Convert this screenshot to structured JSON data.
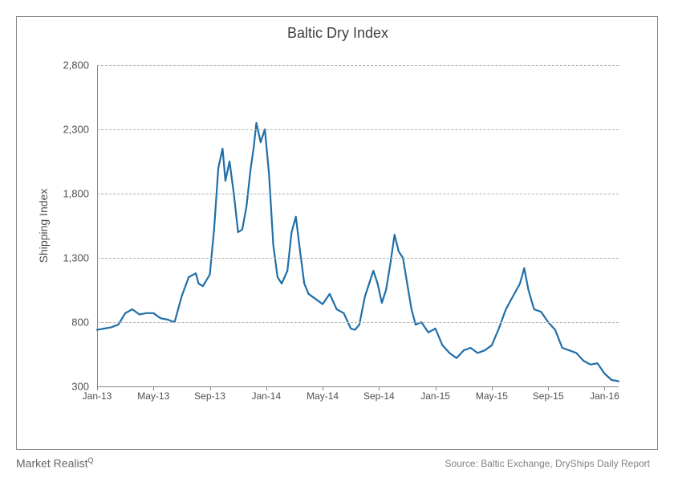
{
  "chart": {
    "type": "line",
    "title": "Baltic Dry Index",
    "title_fontsize": 18,
    "title_color": "#404040",
    "y_axis_title": "Shipping Index",
    "y_axis_title_fontsize": 14,
    "background_color": "#ffffff",
    "border_color": "#888888",
    "grid_color": "#b0b0b0",
    "grid_style": "dashed",
    "line_color": "#1f6fa8",
    "line_width": 2.2,
    "ylim": [
      300,
      2800
    ],
    "ytick_step": 500,
    "yticks": [
      300,
      800,
      1300,
      1800,
      2300,
      2800
    ],
    "ytick_labels": [
      "300",
      "800",
      "1,300",
      "1,800",
      "2,300",
      "2,800"
    ],
    "xlim": [
      0,
      37
    ],
    "xtick_positions": [
      0,
      4,
      8,
      12,
      16,
      20,
      24,
      28,
      32,
      36
    ],
    "xtick_labels": [
      "Jan-13",
      "May-13",
      "Sep-13",
      "Jan-14",
      "May-14",
      "Sep-14",
      "Jan-15",
      "May-15",
      "Sep-15",
      "Jan-16"
    ],
    "tick_label_fontsize": 13,
    "tick_label_color": "#505050",
    "series": [
      {
        "x": 0.0,
        "y": 740
      },
      {
        "x": 0.5,
        "y": 750
      },
      {
        "x": 1.0,
        "y": 760
      },
      {
        "x": 1.5,
        "y": 780
      },
      {
        "x": 2.0,
        "y": 870
      },
      {
        "x": 2.5,
        "y": 900
      },
      {
        "x": 3.0,
        "y": 860
      },
      {
        "x": 3.5,
        "y": 870
      },
      {
        "x": 4.0,
        "y": 870
      },
      {
        "x": 4.5,
        "y": 830
      },
      {
        "x": 5.0,
        "y": 820
      },
      {
        "x": 5.5,
        "y": 800
      },
      {
        "x": 6.0,
        "y": 1000
      },
      {
        "x": 6.5,
        "y": 1150
      },
      {
        "x": 7.0,
        "y": 1180
      },
      {
        "x": 7.2,
        "y": 1100
      },
      {
        "x": 7.5,
        "y": 1080
      },
      {
        "x": 8.0,
        "y": 1170
      },
      {
        "x": 8.3,
        "y": 1520
      },
      {
        "x": 8.6,
        "y": 2000
      },
      {
        "x": 8.9,
        "y": 2150
      },
      {
        "x": 9.1,
        "y": 1900
      },
      {
        "x": 9.4,
        "y": 2050
      },
      {
        "x": 9.7,
        "y": 1800
      },
      {
        "x": 10.0,
        "y": 1500
      },
      {
        "x": 10.3,
        "y": 1520
      },
      {
        "x": 10.6,
        "y": 1700
      },
      {
        "x": 10.9,
        "y": 2000
      },
      {
        "x": 11.1,
        "y": 2150
      },
      {
        "x": 11.3,
        "y": 2350
      },
      {
        "x": 11.6,
        "y": 2200
      },
      {
        "x": 11.9,
        "y": 2300
      },
      {
        "x": 12.2,
        "y": 1950
      },
      {
        "x": 12.5,
        "y": 1400
      },
      {
        "x": 12.8,
        "y": 1150
      },
      {
        "x": 13.1,
        "y": 1100
      },
      {
        "x": 13.5,
        "y": 1200
      },
      {
        "x": 13.8,
        "y": 1500
      },
      {
        "x": 14.1,
        "y": 1620
      },
      {
        "x": 14.4,
        "y": 1350
      },
      {
        "x": 14.7,
        "y": 1100
      },
      {
        "x": 15.0,
        "y": 1020
      },
      {
        "x": 15.5,
        "y": 980
      },
      {
        "x": 16.0,
        "y": 940
      },
      {
        "x": 16.5,
        "y": 1020
      },
      {
        "x": 17.0,
        "y": 900
      },
      {
        "x": 17.5,
        "y": 870
      },
      {
        "x": 18.0,
        "y": 750
      },
      {
        "x": 18.3,
        "y": 740
      },
      {
        "x": 18.6,
        "y": 780
      },
      {
        "x": 19.0,
        "y": 1000
      },
      {
        "x": 19.3,
        "y": 1100
      },
      {
        "x": 19.6,
        "y": 1200
      },
      {
        "x": 19.9,
        "y": 1100
      },
      {
        "x": 20.2,
        "y": 950
      },
      {
        "x": 20.5,
        "y": 1050
      },
      {
        "x": 20.8,
        "y": 1250
      },
      {
        "x": 21.1,
        "y": 1480
      },
      {
        "x": 21.4,
        "y": 1350
      },
      {
        "x": 21.7,
        "y": 1300
      },
      {
        "x": 22.0,
        "y": 1100
      },
      {
        "x": 22.3,
        "y": 900
      },
      {
        "x": 22.6,
        "y": 780
      },
      {
        "x": 23.0,
        "y": 800
      },
      {
        "x": 23.5,
        "y": 720
      },
      {
        "x": 24.0,
        "y": 750
      },
      {
        "x": 24.5,
        "y": 620
      },
      {
        "x": 25.0,
        "y": 560
      },
      {
        "x": 25.5,
        "y": 520
      },
      {
        "x": 26.0,
        "y": 580
      },
      {
        "x": 26.5,
        "y": 600
      },
      {
        "x": 27.0,
        "y": 560
      },
      {
        "x": 27.5,
        "y": 580
      },
      {
        "x": 28.0,
        "y": 620
      },
      {
        "x": 28.5,
        "y": 750
      },
      {
        "x": 29.0,
        "y": 900
      },
      {
        "x": 29.5,
        "y": 1000
      },
      {
        "x": 30.0,
        "y": 1100
      },
      {
        "x": 30.3,
        "y": 1220
      },
      {
        "x": 30.6,
        "y": 1050
      },
      {
        "x": 31.0,
        "y": 900
      },
      {
        "x": 31.5,
        "y": 880
      },
      {
        "x": 32.0,
        "y": 800
      },
      {
        "x": 32.5,
        "y": 740
      },
      {
        "x": 33.0,
        "y": 600
      },
      {
        "x": 33.5,
        "y": 580
      },
      {
        "x": 34.0,
        "y": 560
      },
      {
        "x": 34.5,
        "y": 500
      },
      {
        "x": 35.0,
        "y": 470
      },
      {
        "x": 35.5,
        "y": 480
      },
      {
        "x": 36.0,
        "y": 400
      },
      {
        "x": 36.5,
        "y": 350
      },
      {
        "x": 37.0,
        "y": 340
      }
    ]
  },
  "footer": {
    "brand": "Market Realist",
    "brand_symbol": "Q",
    "source": "Source: Baltic Exchange, DryShips Daily Report",
    "brand_color": "#666666",
    "source_color": "#808080"
  }
}
